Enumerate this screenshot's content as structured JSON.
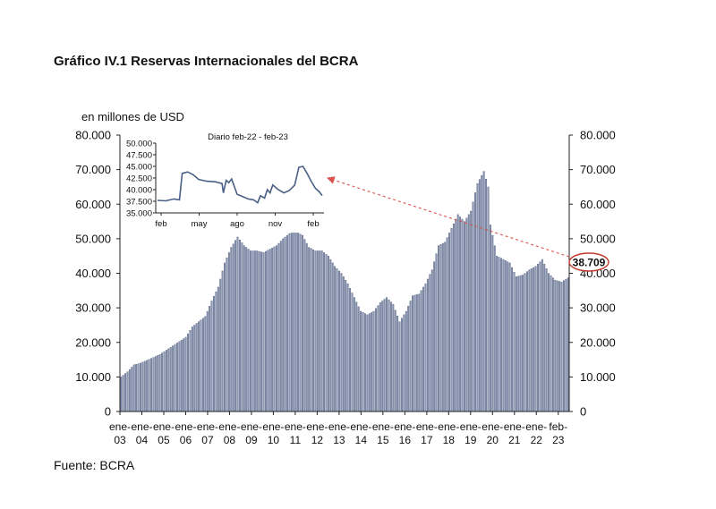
{
  "title": "Gráfico IV.1 Reservas Internacionales del BCRA",
  "source": "Fuente: BCRA",
  "chart_data": {
    "type": "bar",
    "title": "Gráfico IV.1 Reservas Internacionales del BCRA",
    "ylabel": "en millones de USD",
    "ylim": [
      0,
      80000
    ],
    "yticks": [
      "0",
      "10.000",
      "20.000",
      "30.000",
      "40.000",
      "50.000",
      "60.000",
      "70.000",
      "80.000"
    ],
    "xticks": [
      {
        "top": "ene-",
        "bottom": "03"
      },
      {
        "top": "ene-",
        "bottom": "04"
      },
      {
        "top": "ene-",
        "bottom": "05"
      },
      {
        "top": "ene-",
        "bottom": "06"
      },
      {
        "top": "ene-",
        "bottom": "07"
      },
      {
        "top": "ene-",
        "bottom": "08"
      },
      {
        "top": "ene-",
        "bottom": "09"
      },
      {
        "top": "ene-",
        "bottom": "10"
      },
      {
        "top": "ene-",
        "bottom": "11"
      },
      {
        "top": "ene-",
        "bottom": "12"
      },
      {
        "top": "ene-",
        "bottom": "13"
      },
      {
        "top": "ene-",
        "bottom": "14"
      },
      {
        "top": "ene-",
        "bottom": "15"
      },
      {
        "top": "ene-",
        "bottom": "16"
      },
      {
        "top": "ene-",
        "bottom": "17"
      },
      {
        "top": "ene-",
        "bottom": "18"
      },
      {
        "top": "ene-",
        "bottom": "19"
      },
      {
        "top": "ene-",
        "bottom": "20"
      },
      {
        "top": "ene-",
        "bottom": "21"
      },
      {
        "top": "ene-",
        "bottom": "22"
      },
      {
        "top": "feb-",
        "bottom": "23"
      }
    ],
    "series_anchors": [
      [
        0,
        10000
      ],
      [
        3,
        11500
      ],
      [
        6,
        13500
      ],
      [
        9,
        14000
      ],
      [
        12,
        14800
      ],
      [
        18,
        16500
      ],
      [
        24,
        19000
      ],
      [
        30,
        21500
      ],
      [
        33,
        24500
      ],
      [
        36,
        26000
      ],
      [
        39,
        27500
      ],
      [
        42,
        32000
      ],
      [
        45,
        36000
      ],
      [
        48,
        43000
      ],
      [
        51,
        47500
      ],
      [
        54,
        50500
      ],
      [
        57,
        48000
      ],
      [
        60,
        46500
      ],
      [
        63,
        46500
      ],
      [
        66,
        46000
      ],
      [
        69,
        47000
      ],
      [
        72,
        48000
      ],
      [
        75,
        50000
      ],
      [
        78,
        51500
      ],
      [
        81,
        52000
      ],
      [
        84,
        51000
      ],
      [
        87,
        47500
      ],
      [
        90,
        46500
      ],
      [
        93,
        46500
      ],
      [
        96,
        45000
      ],
      [
        99,
        42000
      ],
      [
        102,
        40000
      ],
      [
        105,
        37000
      ],
      [
        108,
        33000
      ],
      [
        111,
        29000
      ],
      [
        114,
        28000
      ],
      [
        117,
        29000
      ],
      [
        120,
        31500
      ],
      [
        123,
        33000
      ],
      [
        126,
        31000
      ],
      [
        129,
        26000
      ],
      [
        132,
        29000
      ],
      [
        135,
        33500
      ],
      [
        138,
        34000
      ],
      [
        141,
        37000
      ],
      [
        144,
        41000
      ],
      [
        147,
        48000
      ],
      [
        150,
        49000
      ],
      [
        153,
        53000
      ],
      [
        156,
        57000
      ],
      [
        159,
        55000
      ],
      [
        162,
        58000
      ],
      [
        165,
        66000
      ],
      [
        168,
        69500
      ],
      [
        170,
        65000
      ],
      [
        171,
        54000
      ],
      [
        174,
        45000
      ],
      [
        177,
        44000
      ],
      [
        180,
        43000
      ],
      [
        183,
        39000
      ],
      [
        186,
        39500
      ],
      [
        189,
        41000
      ],
      [
        192,
        42000
      ],
      [
        195,
        44000
      ],
      [
        198,
        40000
      ],
      [
        201,
        38000
      ],
      [
        204,
        37500
      ],
      [
        207,
        38709
      ]
    ],
    "inset": {
      "title": "Diario feb-22 - feb-23",
      "ylim": [
        35000,
        50000
      ],
      "yticks": [
        "50.000",
        "47.500",
        "45.000",
        "42.500",
        "40.000",
        "37.500",
        "35.000"
      ],
      "xticks": [
        "feb",
        "may",
        "ago",
        "nov",
        "feb"
      ],
      "series": [
        [
          0,
          37700
        ],
        [
          6,
          37600
        ],
        [
          12,
          38000
        ],
        [
          16,
          37800
        ],
        [
          18,
          43500
        ],
        [
          22,
          43800
        ],
        [
          26,
          43200
        ],
        [
          30,
          42200
        ],
        [
          36,
          41800
        ],
        [
          42,
          41700
        ],
        [
          47,
          41300
        ],
        [
          48,
          39300
        ],
        [
          50,
          42000
        ],
        [
          52,
          41500
        ],
        [
          54,
          42300
        ],
        [
          58,
          39000
        ],
        [
          62,
          38500
        ],
        [
          66,
          38000
        ],
        [
          70,
          37800
        ],
        [
          73,
          37200
        ],
        [
          75,
          38700
        ],
        [
          78,
          38200
        ],
        [
          80,
          40000
        ],
        [
          82,
          39300
        ],
        [
          84,
          41000
        ],
        [
          88,
          40000
        ],
        [
          92,
          39300
        ],
        [
          96,
          39800
        ],
        [
          100,
          41000
        ],
        [
          103,
          44800
        ],
        [
          106,
          45000
        ],
        [
          109,
          43500
        ],
        [
          112,
          41800
        ],
        [
          115,
          40300
        ],
        [
          118,
          39500
        ],
        [
          120,
          38709
        ]
      ]
    },
    "annotation": "38.709",
    "colors": {
      "bar": "#8e9ab5",
      "bar_edge": "#3d4b70",
      "inset_line": "#4a5f86",
      "callout_circle": "#c0392b",
      "arrow": "#d9534f"
    }
  }
}
